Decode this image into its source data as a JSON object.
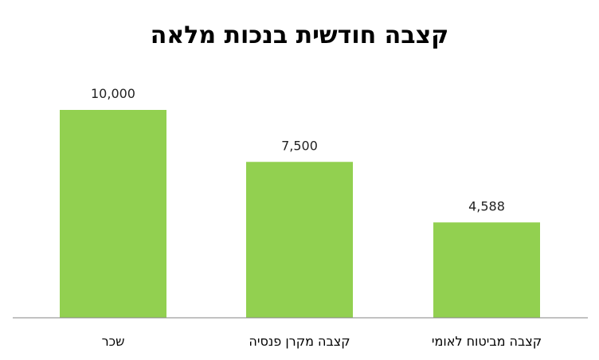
{
  "chart_data": {
    "type": "bar",
    "title": "קצבה חודשית בנכות מלאה",
    "categories": [
      "שכר",
      "קצבה מקרן פנסיה",
      "קצבה מביטוח לאומי"
    ],
    "values": [
      10000,
      7500,
      4588
    ],
    "data_labels": [
      "10,000",
      "7,500",
      "4,588"
    ],
    "xlabel": "",
    "ylabel": "",
    "ylim": [
      0,
      10000
    ],
    "grid": false,
    "legend": "none",
    "bar_color": "#92D050",
    "axis_color": "#868686"
  }
}
